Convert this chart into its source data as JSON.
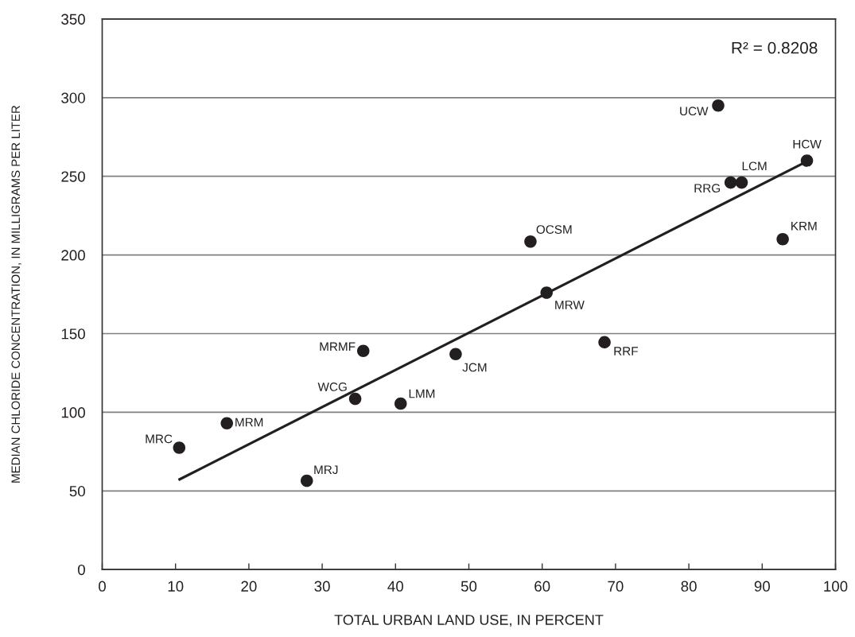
{
  "chart_data": {
    "type": "scatter",
    "xlabel": "TOTAL URBAN LAND USE, IN PERCENT",
    "ylabel": "MEDIAN CHLORIDE CONCENTRATION, IN MILLIGRAMS PER LITER",
    "xlim": [
      0,
      100
    ],
    "ylim": [
      0,
      350
    ],
    "xticks": [
      0,
      10,
      20,
      30,
      40,
      50,
      60,
      70,
      80,
      90,
      100
    ],
    "yticks": [
      0,
      50,
      100,
      150,
      200,
      250,
      300,
      350
    ],
    "grid": "y",
    "series": [
      {
        "color": "#231f20",
        "marker": "circle",
        "x": [
          10.5,
          17.0,
          27.9,
          34.5,
          35.6,
          40.7,
          48.2,
          58.4,
          60.6,
          68.5,
          84.0,
          85.7,
          87.2,
          92.8,
          96.1
        ],
        "values": [
          77.5,
          93,
          56.5,
          108.5,
          139,
          105.5,
          137,
          208.5,
          176,
          144.5,
          295,
          246,
          246,
          210,
          260
        ]
      },
      {
        "type": "line",
        "color": "#231f20",
        "x": [
          10.4,
          95.9
        ],
        "values": [
          57,
          259
        ]
      }
    ],
    "annotations": [
      "R² = 0.8208",
      {
        "text": "MRC",
        "x": 10.5,
        "y": 77.5
      },
      {
        "text": "MRM",
        "x": 17.0,
        "y": 93
      },
      {
        "text": "MRJ",
        "x": 27.9,
        "y": 56.5
      },
      {
        "text": "WCG",
        "x": 34.5,
        "y": 108.5
      },
      {
        "text": "MRMF",
        "x": 35.6,
        "y": 139
      },
      {
        "text": "LMM",
        "x": 40.7,
        "y": 105.5
      },
      {
        "text": "JCM",
        "x": 48.2,
        "y": 137
      },
      {
        "text": "OCSM",
        "x": 58.4,
        "y": 208.5
      },
      {
        "text": "MRW",
        "x": 60.6,
        "y": 176
      },
      {
        "text": "RRF",
        "x": 68.5,
        "y": 144.5
      },
      {
        "text": "UCW",
        "x": 84.0,
        "y": 295
      },
      {
        "text": "RRG",
        "x": 85.7,
        "y": 246
      },
      {
        "text": "LCM",
        "x": 87.2,
        "y": 246
      },
      {
        "text": "KRM",
        "x": 92.8,
        "y": 210
      },
      {
        "text": "HCW",
        "x": 96.1,
        "y": 260
      }
    ]
  }
}
